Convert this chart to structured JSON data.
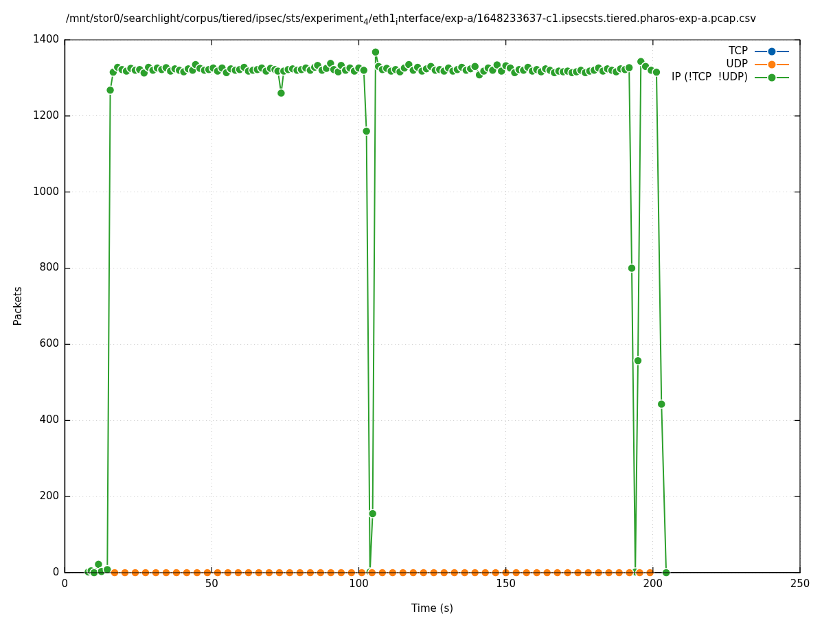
{
  "chart_data": {
    "type": "line",
    "title": "/mnt/stor0/searchlight/corpus/tiered/ipsec/sts/experiment$_{4}$/eth1$_{i}$nterface/exp-a/1648233637-c1.ipsecsts.tiered.pharos-exp-a.pcap.csv",
    "xlabel": "Time (s)",
    "ylabel": "Packets",
    "xlim": [
      0,
      250
    ],
    "xticks": [
      0,
      50,
      100,
      150,
      200,
      250
    ],
    "ylim": [
      0,
      1400
    ],
    "yticks": [
      0,
      200,
      400,
      600,
      800,
      1000,
      1200,
      1400
    ],
    "grid": true,
    "legend": "top right",
    "marker": "circle",
    "line_style": "solid",
    "series": [
      {
        "name": "TCP",
        "color": "#0060ad"
      },
      {
        "name": "UDP",
        "color": "#ff7f0e",
        "x": [
          17,
          20.5,
          24,
          27.5,
          31,
          34.5,
          38,
          41.5,
          45,
          48.5,
          52,
          55.5,
          59,
          62.5,
          66,
          69.5,
          73,
          76.5,
          80,
          83.5,
          87,
          90.5,
          94,
          97.5,
          101,
          104.5,
          108,
          111.5,
          115,
          118.5,
          122,
          125.5,
          129,
          132.5,
          136,
          139.5,
          143,
          146.5,
          150,
          153.5,
          157,
          160.5,
          164,
          167.5,
          171,
          174.5,
          178,
          181.5,
          185,
          188.5,
          192,
          195.5,
          199
        ],
        "values": [
          0,
          0,
          0,
          0,
          0,
          0,
          0,
          0,
          0,
          0,
          0,
          0,
          0,
          0,
          0,
          0,
          0,
          0,
          0,
          0,
          0,
          0,
          0,
          0,
          0,
          0,
          0,
          0,
          0,
          0,
          0,
          0,
          0,
          0,
          0,
          0,
          0,
          0,
          0,
          0,
          0,
          0,
          0,
          0,
          0,
          0,
          0,
          0,
          0,
          0,
          0,
          0,
          0
        ]
      },
      {
        "name": "IP (!TCP  !UDP)",
        "color": "#2ca02c",
        "x": [
          8,
          9,
          10,
          11.5,
          12.5,
          14.5,
          15.5,
          16.5,
          18,
          19.5,
          21,
          22.5,
          24,
          25.5,
          27,
          28.5,
          30,
          31.5,
          33,
          34.5,
          36,
          37.5,
          39,
          40.5,
          42,
          43.5,
          44.5,
          46,
          47.5,
          49,
          50.5,
          52,
          53.5,
          55,
          56.5,
          58,
          59.5,
          61,
          62.5,
          64,
          65.5,
          67,
          68.5,
          70,
          71.5,
          72.5,
          73.6,
          74.5,
          76,
          77.5,
          79,
          80.5,
          82,
          83.5,
          85,
          86,
          87.5,
          89,
          90.4,
          91.5,
          93,
          94,
          95.5,
          97,
          98.5,
          100,
          101.7,
          102.6,
          103.8,
          104.7,
          105.7,
          106.7,
          108,
          109.5,
          111,
          112.5,
          114,
          115.5,
          117,
          118.5,
          120,
          121.5,
          123,
          124.5,
          126,
          127.5,
          129,
          130.5,
          132,
          133.5,
          135,
          136.5,
          138,
          139.5,
          141,
          142.5,
          144,
          145.5,
          147,
          148.5,
          150,
          151.5,
          153,
          154.5,
          156,
          157.5,
          159,
          160.5,
          162,
          163.5,
          165,
          166.5,
          168,
          169.5,
          171,
          172.5,
          174,
          175.5,
          177,
          178.5,
          180,
          181.5,
          183,
          184.5,
          186,
          187.5,
          189,
          190.5,
          191.9,
          192.8,
          194,
          194.9,
          195.9,
          197.5,
          199.4,
          201.2,
          202.9,
          204.5
        ],
        "values": [
          2,
          5,
          0,
          22,
          3,
          8,
          1268,
          1315,
          1328,
          1322,
          1318,
          1325,
          1320,
          1322,
          1313,
          1328,
          1320,
          1326,
          1322,
          1327,
          1318,
          1324,
          1320,
          1316,
          1324,
          1320,
          1335,
          1325,
          1320,
          1322,
          1326,
          1318,
          1326,
          1314,
          1324,
          1320,
          1322,
          1328,
          1318,
          1320,
          1322,
          1326,
          1318,
          1325,
          1322,
          1318,
          1260,
          1318,
          1322,
          1324,
          1320,
          1322,
          1326,
          1320,
          1328,
          1333,
          1320,
          1325,
          1338,
          1322,
          1316,
          1333,
          1320,
          1326,
          1318,
          1326,
          1320,
          1160,
          2,
          155,
          1368,
          1330,
          1322,
          1325,
          1318,
          1322,
          1316,
          1326,
          1335,
          1320,
          1328,
          1318,
          1324,
          1330,
          1320,
          1322,
          1318,
          1326,
          1318,
          1322,
          1328,
          1320,
          1324,
          1330,
          1308,
          1318,
          1326,
          1320,
          1334,
          1318,
          1332,
          1326,
          1314,
          1322,
          1320,
          1328,
          1318,
          1322,
          1316,
          1324,
          1320,
          1314,
          1318,
          1316,
          1318,
          1314,
          1316,
          1320,
          1314,
          1318,
          1320,
          1326,
          1318,
          1324,
          1320,
          1316,
          1324,
          1322,
          1327,
          800,
          2,
          557,
          1343,
          1330,
          1320,
          1315,
          443,
          0
        ]
      }
    ]
  }
}
